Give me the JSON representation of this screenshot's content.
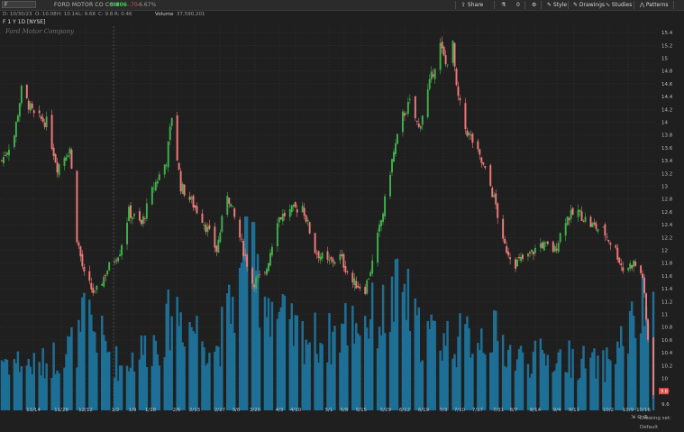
{
  "header": {
    "symbol": "F",
    "company": "FORD MOTOR CO COM",
    "last": "9.806",
    "change": "-.70",
    "change_pct": "-6.67%",
    "toolbar": [
      {
        "label": "Share",
        "icon": "share-icon"
      },
      {
        "label": "",
        "icon": "flask-icon"
      },
      {
        "label": "0",
        "icon": "counter"
      },
      {
        "label": "",
        "icon": "gear-icon"
      },
      {
        "label": "Style",
        "icon": "style-icon"
      },
      {
        "label": "Drawings",
        "icon": "pencil-icon"
      },
      {
        "label": "Studies",
        "icon": "studies-icon"
      },
      {
        "label": "Patterns",
        "icon": "patterns-icon"
      }
    ]
  },
  "infobar": {
    "date": "D: 10/30/23",
    "open": "O: 10.08",
    "high": "H: 10.14",
    "low": "L: 9.68",
    "close": "C: 9.8",
    "range": "R: 0.46",
    "volume_label": "Volume",
    "volume_value": "37,590,201"
  },
  "security_label": "F 1 Y 1D [NYSE]",
  "watermark": "Ford Motor Company",
  "status": {
    "drawing_set": "Drawing set: Default"
  },
  "colors": {
    "up": "#3fb04a",
    "down": "#f07a78",
    "volume": "#1e6f95",
    "background": "#1f1f1f",
    "grid": "#3a3a3a",
    "last_price_bg": "#e84545"
  },
  "chart_data": {
    "type": "candlestick",
    "price_axis": {
      "range": [
        9.5,
        15.5
      ],
      "ticks": [
        "9.6",
        "9.8",
        "10",
        "10.2",
        "10.4",
        "10.6",
        "10.8",
        "11",
        "11.2",
        "11.4",
        "11.6",
        "11.8",
        "12",
        "12.2",
        "12.4",
        "12.6",
        "12.8",
        "13",
        "13.2",
        "13.4",
        "13.6",
        "13.8",
        "14",
        "14.2",
        "14.4",
        "14.6",
        "14.8",
        "15",
        "15.2",
        "15.4"
      ],
      "last_price_label": "9.8"
    },
    "x_axis": {
      "range": [
        "2022-10-31",
        "2023-10-30"
      ],
      "tick_labels": [
        "11/14",
        "11/28",
        "12/12",
        "1/2",
        "1/9",
        "1/18",
        "2/6",
        "2/13",
        "2/27",
        "3/6",
        "3/20",
        "4/3",
        "4/10",
        "5/1",
        "5/8",
        "5/15",
        "5/29",
        "6/12",
        "6/19",
        "7/3",
        "7/10",
        "7/17",
        "7/31",
        "8/7",
        "8/14",
        "9/4",
        "9/11",
        "10/2",
        "10/9",
        "10/16"
      ]
    },
    "close_path": [
      [
        "2022-10-31",
        13.4
      ],
      [
        "2022-11-07",
        13.8
      ],
      [
        "2022-11-11",
        14.5
      ],
      [
        "2022-11-18",
        14.1
      ],
      [
        "2022-11-25",
        14.0
      ],
      [
        "2022-12-01",
        13.3
      ],
      [
        "2022-12-08",
        13.6
      ],
      [
        "2022-12-12",
        12.2
      ],
      [
        "2022-12-16",
        11.6
      ],
      [
        "2022-12-22",
        11.3
      ],
      [
        "2022-12-29",
        11.7
      ],
      [
        "2023-01-05",
        12.0
      ],
      [
        "2023-01-10",
        12.6
      ],
      [
        "2023-01-17",
        12.4
      ],
      [
        "2023-01-24",
        13.0
      ],
      [
        "2023-01-31",
        13.4
      ],
      [
        "2023-02-03",
        14.1
      ],
      [
        "2023-02-08",
        13.0
      ],
      [
        "2023-02-13",
        12.8
      ],
      [
        "2023-02-20",
        12.5
      ],
      [
        "2023-02-28",
        12.0
      ],
      [
        "2023-03-06",
        12.9
      ],
      [
        "2023-03-13",
        12.2
      ],
      [
        "2023-03-20",
        11.5
      ],
      [
        "2023-03-27",
        11.6
      ],
      [
        "2023-04-03",
        12.5
      ],
      [
        "2023-04-10",
        12.6
      ],
      [
        "2023-04-17",
        12.7
      ],
      [
        "2023-04-24",
        12.0
      ],
      [
        "2023-05-01",
        11.8
      ],
      [
        "2023-05-08",
        11.9
      ],
      [
        "2023-05-15",
        11.5
      ],
      [
        "2023-05-22",
        11.4
      ],
      [
        "2023-05-26",
        11.8
      ],
      [
        "2023-06-01",
        12.6
      ],
      [
        "2023-06-06",
        13.4
      ],
      [
        "2023-06-12",
        14.1
      ],
      [
        "2023-06-16",
        14.3
      ],
      [
        "2023-06-21",
        13.9
      ],
      [
        "2023-06-27",
        14.6
      ],
      [
        "2023-07-03",
        15.2
      ],
      [
        "2023-07-06",
        14.9
      ],
      [
        "2023-07-10",
        15.2
      ],
      [
        "2023-07-12",
        14.5
      ],
      [
        "2023-07-17",
        13.9
      ],
      [
        "2023-07-21",
        13.7
      ],
      [
        "2023-07-27",
        13.3
      ],
      [
        "2023-07-31",
        13.0
      ],
      [
        "2023-08-03",
        12.7
      ],
      [
        "2023-08-07",
        12.1
      ],
      [
        "2023-08-14",
        11.8
      ],
      [
        "2023-08-21",
        11.9
      ],
      [
        "2023-08-28",
        12.1
      ],
      [
        "2023-09-05",
        12.0
      ],
      [
        "2023-09-11",
        12.5
      ],
      [
        "2023-09-18",
        12.6
      ],
      [
        "2023-09-25",
        12.4
      ],
      [
        "2023-10-02",
        12.3
      ],
      [
        "2023-10-09",
        12.0
      ],
      [
        "2023-10-13",
        11.7
      ],
      [
        "2023-10-19",
        11.8
      ],
      [
        "2023-10-24",
        11.6
      ],
      [
        "2023-10-26",
        10.9
      ],
      [
        "2023-10-30",
        9.8
      ]
    ],
    "volume_profile": [
      [
        "2022-10-31",
        0.3
      ],
      [
        "2022-11-21",
        0.25
      ],
      [
        "2022-12-14",
        0.4
      ],
      [
        "2022-12-16",
        0.55
      ],
      [
        "2023-01-05",
        0.25
      ],
      [
        "2023-01-31",
        0.45
      ],
      [
        "2023-02-03",
        0.6
      ],
      [
        "2023-02-28",
        0.35
      ],
      [
        "2023-03-10",
        0.65
      ],
      [
        "2023-03-15",
        0.75
      ],
      [
        "2023-03-20",
        0.8
      ],
      [
        "2023-04-10",
        0.45
      ],
      [
        "2023-05-01",
        0.4
      ],
      [
        "2023-05-12",
        0.5
      ],
      [
        "2023-06-02",
        0.55
      ],
      [
        "2023-06-12",
        0.7
      ],
      [
        "2023-06-20",
        0.45
      ],
      [
        "2023-07-12",
        0.4
      ],
      [
        "2023-07-31",
        0.45
      ],
      [
        "2023-08-14",
        0.3
      ],
      [
        "2023-09-11",
        0.3
      ],
      [
        "2023-10-02",
        0.25
      ],
      [
        "2023-10-27",
        0.6
      ],
      [
        "2023-10-30",
        0.5
      ]
    ],
    "volume_spike_dates": [
      "2023-03-17"
    ],
    "volatility": 0.09
  }
}
